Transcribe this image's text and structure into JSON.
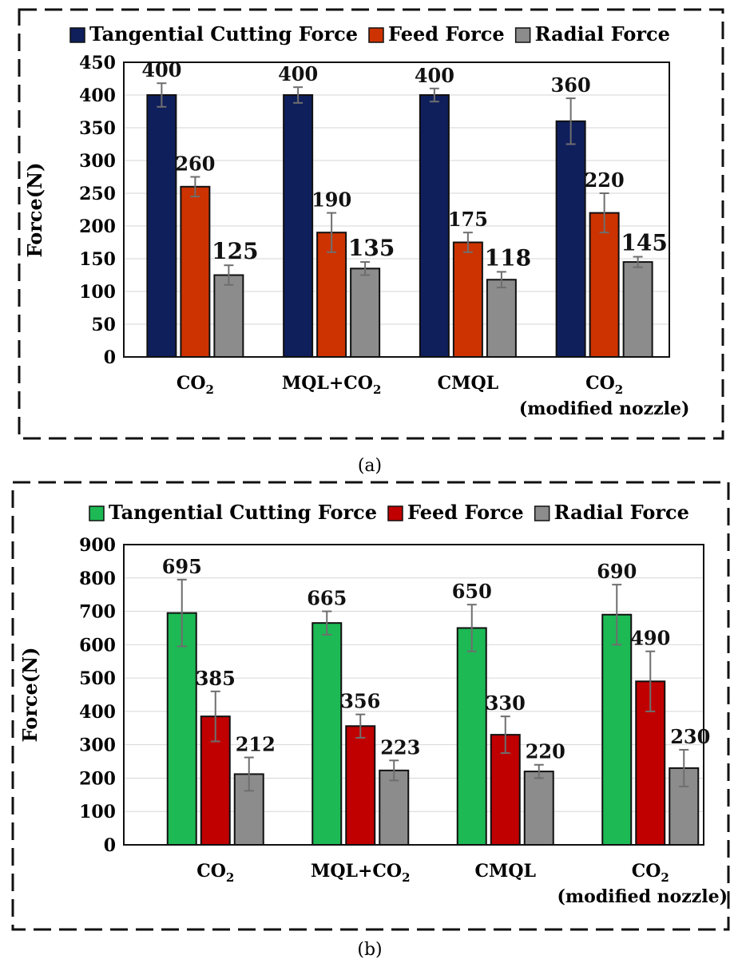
{
  "chart_data": [
    {
      "panel": "(a)",
      "type": "bar",
      "title": "",
      "xlabel": "",
      "ylabel": "Force(N)",
      "ylim": [
        0,
        450
      ],
      "yticks": [
        "0",
        "50",
        "100",
        "150",
        "200",
        "250",
        "300",
        "350",
        "400",
        "450"
      ],
      "grid": true,
      "legend_position": "top",
      "categories": [
        {
          "base": "CO",
          "sub": "2",
          "second_line": ""
        },
        {
          "base": "MQL+CO",
          "sub": "2",
          "second_line": ""
        },
        {
          "base": "CMQL",
          "sub": "",
          "second_line": ""
        },
        {
          "base": "CO",
          "sub": "2",
          "second_line": "(modified nozzle)"
        }
      ],
      "series": [
        {
          "name": "Tangential Cutting Force",
          "color": "#0f1f5c",
          "values": [
            400,
            400,
            400,
            360
          ],
          "labels": [
            "400",
            "400",
            "400",
            "360"
          ],
          "error": [
            18,
            12,
            10,
            35
          ]
        },
        {
          "name": "Feed Force",
          "color": "#cc3300",
          "values": [
            260,
            190,
            175,
            220
          ],
          "labels": [
            "260",
            "190",
            "175",
            "220"
          ],
          "error": [
            15,
            30,
            15,
            30
          ]
        },
        {
          "name": "Radial Force",
          "color": "#8c8c8c",
          "values": [
            125,
            135,
            118,
            145
          ],
          "labels": [
            "125",
            "135",
            "118",
            "145"
          ],
          "error": [
            15,
            10,
            12,
            8
          ]
        }
      ]
    },
    {
      "panel": "(b)",
      "type": "bar",
      "title": "",
      "xlabel": "",
      "ylabel": "Force(N)",
      "ylim": [
        0,
        900
      ],
      "yticks": [
        "0",
        "100",
        "200",
        "300",
        "400",
        "500",
        "600",
        "700",
        "800",
        "900"
      ],
      "grid": true,
      "legend_position": "top",
      "categories": [
        {
          "base": "CO",
          "sub": "2",
          "second_line": ""
        },
        {
          "base": "MQL+CO",
          "sub": "2",
          "second_line": ""
        },
        {
          "base": "CMQL",
          "sub": "",
          "second_line": ""
        },
        {
          "base": "CO",
          "sub": "2",
          "second_line": "(modified nozzle)"
        }
      ],
      "series": [
        {
          "name": "Tangential Cutting Force",
          "color": "#1db954",
          "values": [
            695,
            665,
            650,
            690
          ],
          "labels": [
            "695",
            "665",
            "650",
            "690"
          ],
          "error": [
            100,
            35,
            70,
            90
          ]
        },
        {
          "name": "Feed Force",
          "color": "#c00000",
          "values": [
            385,
            356,
            330,
            490
          ],
          "labels": [
            "385",
            "356",
            "330",
            "490"
          ],
          "error": [
            75,
            35,
            55,
            90
          ]
        },
        {
          "name": "Radial Force",
          "color": "#8c8c8c",
          "values": [
            212,
            223,
            220,
            230
          ],
          "labels": [
            "212",
            "223",
            "220",
            "230"
          ],
          "error": [
            50,
            30,
            20,
            55
          ]
        }
      ]
    }
  ]
}
